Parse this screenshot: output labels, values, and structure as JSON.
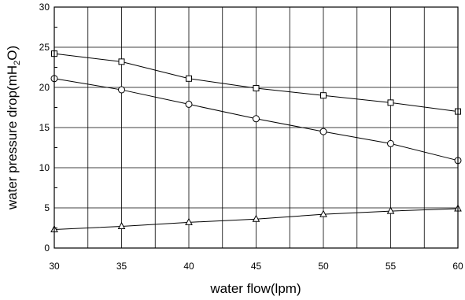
{
  "chart_data": {
    "type": "line",
    "xlabel": "water flow(lpm)",
    "ylabel_main": "water pressure drop(mH",
    "ylabel_sub": "2",
    "ylabel_end": "O)",
    "xlim": [
      30,
      60
    ],
    "ylim": [
      0,
      30
    ],
    "x_ticks": [
      "30",
      "35",
      "40",
      "45",
      "50",
      "55",
      "60"
    ],
    "y_ticks": [
      "0",
      "5",
      "10",
      "15",
      "20",
      "25",
      "30"
    ],
    "grid": true,
    "x": [
      30,
      35,
      40,
      45,
      50,
      55,
      60
    ],
    "series": [
      {
        "marker": "square",
        "values": [
          24.2,
          23.2,
          21.1,
          19.9,
          19.0,
          18.1,
          17.0
        ]
      },
      {
        "marker": "circle",
        "values": [
          21.1,
          19.7,
          17.9,
          16.1,
          14.5,
          13.0,
          10.9
        ]
      },
      {
        "marker": "triangle",
        "values": [
          2.3,
          2.7,
          3.2,
          3.6,
          4.2,
          4.6,
          4.9
        ]
      }
    ],
    "colors": {
      "line": "#000000",
      "grid": "#000000",
      "marker_fill": "#ffffff"
    }
  }
}
